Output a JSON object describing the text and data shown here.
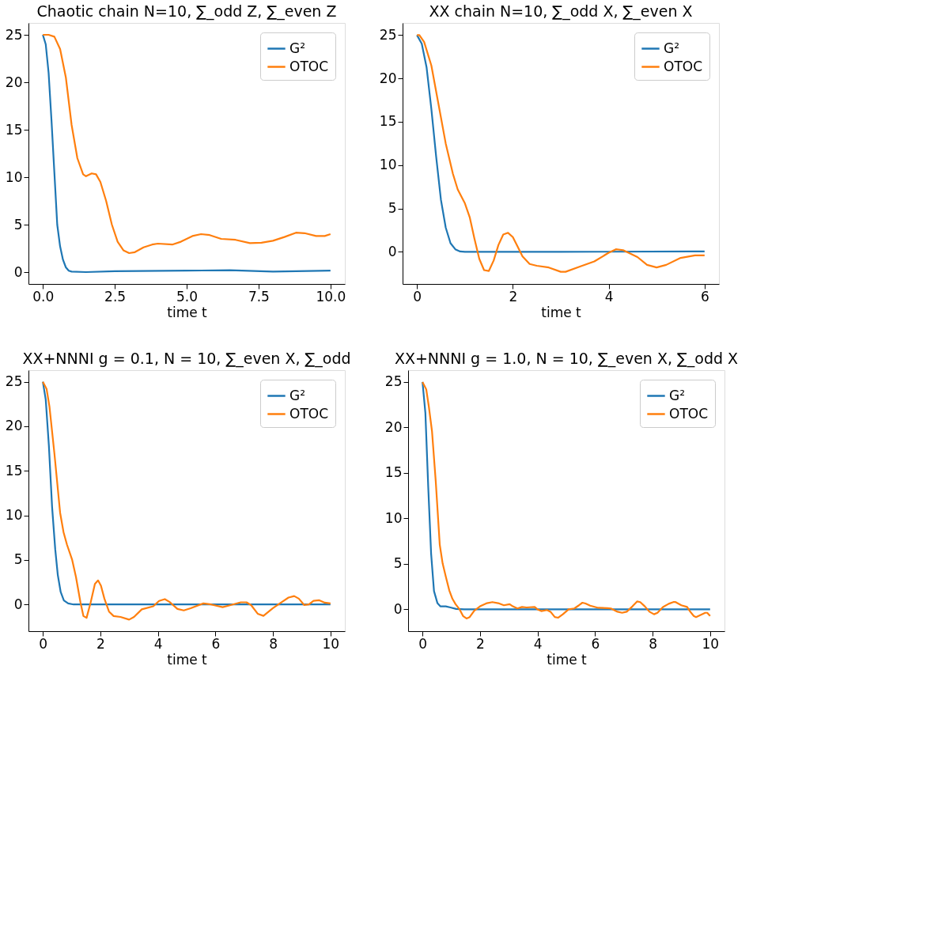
{
  "chart_data": [
    {
      "type": "line",
      "title": "Chaotic chain N=10, ∑_odd Z, ∑_even Z",
      "xlabel": "time t",
      "legend": "top right",
      "grid": false,
      "line_style": "solid",
      "xlim": [
        -0.5,
        10.5
      ],
      "ylim": [
        -1.25,
        26.25
      ],
      "xticks": [
        {
          "value": 0,
          "label": "0.0"
        },
        {
          "value": 2.5,
          "label": "2.5"
        },
        {
          "value": 5,
          "label": "5.0"
        },
        {
          "value": 7.5,
          "label": "7.5"
        },
        {
          "value": 10,
          "label": "10.0"
        }
      ],
      "yticks": [
        0,
        5,
        10,
        15,
        20,
        25
      ],
      "series": [
        {
          "name": "G²",
          "color": "#1f77b4",
          "x": [
            0,
            0.1,
            0.2,
            0.3,
            0.4,
            0.5,
            0.6,
            0.7,
            0.8,
            0.9,
            1.0,
            1.5,
            2.5,
            5,
            6.5,
            8,
            10
          ],
          "values": [
            25,
            24,
            21,
            16,
            10.5,
            5,
            2.7,
            1.3,
            0.5,
            0.15,
            0.05,
            0,
            0.1,
            0.15,
            0.2,
            0.05,
            0.15
          ]
        },
        {
          "name": "OTOC",
          "color": "#ff7f0e",
          "x": [
            0,
            0.2,
            0.4,
            0.6,
            0.8,
            1.0,
            1.2,
            1.4,
            1.5,
            1.7,
            1.85,
            2.0,
            2.2,
            2.4,
            2.6,
            2.8,
            3.0,
            3.2,
            3.5,
            3.8,
            4.0,
            4.5,
            4.8,
            5.2,
            5.5,
            5.8,
            6.2,
            6.7,
            7.2,
            7.6,
            8.0,
            8.4,
            8.8,
            9.1,
            9.5,
            9.8,
            10
          ],
          "values": [
            25,
            25,
            24.8,
            23.5,
            20.5,
            15.5,
            12,
            10.3,
            10.1,
            10.4,
            10.3,
            9.5,
            7.5,
            5,
            3.2,
            2.3,
            2.0,
            2.1,
            2.6,
            2.9,
            3.0,
            2.9,
            3.2,
            3.8,
            4.0,
            3.9,
            3.5,
            3.4,
            3.05,
            3.1,
            3.3,
            3.7,
            4.15,
            4.1,
            3.8,
            3.8,
            4.0
          ]
        }
      ]
    },
    {
      "type": "line",
      "title": "XX chain N=10, ∑_odd X, ∑_even X",
      "xlabel": "time t",
      "legend": "top right",
      "grid": false,
      "line_style": "solid",
      "xlim": [
        -0.3,
        6.3
      ],
      "ylim": [
        -3.7,
        26.4
      ],
      "xticks": [
        0,
        2,
        4,
        6
      ],
      "yticks": [
        0,
        5,
        10,
        15,
        20,
        25
      ],
      "series": [
        {
          "name": "G²",
          "color": "#1f77b4",
          "x": [
            0,
            0.1,
            0.2,
            0.3,
            0.4,
            0.5,
            0.6,
            0.7,
            0.8,
            0.9,
            1.0,
            3,
            5.8,
            6
          ],
          "values": [
            25,
            24,
            21.3,
            16.5,
            11,
            6,
            2.8,
            1.0,
            0.3,
            0.05,
            0,
            0,
            0.05,
            0.05
          ]
        },
        {
          "name": "OTOC",
          "color": "#ff7f0e",
          "x": [
            0,
            0.05,
            0.15,
            0.3,
            0.45,
            0.6,
            0.75,
            0.85,
            1.0,
            1.1,
            1.2,
            1.3,
            1.4,
            1.5,
            1.6,
            1.7,
            1.8,
            1.9,
            2.0,
            2.1,
            2.2,
            2.35,
            2.5,
            2.75,
            3.0,
            3.1,
            3.4,
            3.7,
            4.0,
            4.15,
            4.3,
            4.6,
            4.8,
            5.0,
            5.2,
            5.5,
            5.8,
            6.0
          ],
          "values": [
            25,
            25,
            24.2,
            21.5,
            17,
            12.5,
            9,
            7.2,
            5.6,
            4,
            1.5,
            -0.8,
            -2.1,
            -2.2,
            -1,
            0.8,
            2.0,
            2.2,
            1.7,
            0.6,
            -0.5,
            -1.4,
            -1.6,
            -1.8,
            -2.3,
            -2.3,
            -1.7,
            -1.1,
            -0.1,
            0.3,
            0.2,
            -0.6,
            -1.5,
            -1.8,
            -1.5,
            -0.7,
            -0.4,
            -0.4
          ]
        }
      ]
    },
    {
      "type": "line",
      "title": "XX+NNNI g = 0.1, N = 10, ∑_even X, ∑_odd",
      "xlabel": "time t",
      "legend": "top right",
      "grid": false,
      "line_style": "solid",
      "xlim": [
        -0.5,
        10.5
      ],
      "ylim": [
        -3.0,
        26.3
      ],
      "xticks": [
        0,
        2,
        4,
        6,
        8,
        10
      ],
      "yticks": [
        0,
        5,
        10,
        15,
        20,
        25
      ],
      "series": [
        {
          "name": "G²",
          "color": "#1f77b4",
          "x": [
            0,
            0.1,
            0.21,
            0.32,
            0.43,
            0.52,
            0.62,
            0.73,
            0.88,
            1.07,
            10
          ],
          "values": [
            25,
            23,
            17.8,
            11,
            6.2,
            3.3,
            1.4,
            0.46,
            0.12,
            0,
            0
          ]
        },
        {
          "name": "OTOC",
          "color": "#ff7f0e",
          "x": [
            0,
            0.13,
            0.23,
            0.4,
            0.6,
            0.72,
            0.84,
            1.02,
            1.15,
            1.31,
            1.41,
            1.52,
            1.66,
            1.81,
            1.92,
            2.02,
            2.14,
            2.3,
            2.46,
            2.7,
            3.0,
            3.17,
            3.44,
            3.84,
            4.04,
            4.24,
            4.4,
            4.68,
            4.9,
            5.14,
            5.58,
            5.85,
            6.25,
            6.53,
            6.88,
            7.08,
            7.24,
            7.47,
            7.67,
            7.99,
            8.26,
            8.54,
            8.74,
            8.9,
            9.09,
            9.25,
            9.41,
            9.6,
            9.8,
            10
          ],
          "values": [
            25,
            24.2,
            22.2,
            17,
            10.3,
            8.1,
            6.7,
            5,
            3.1,
            0.2,
            -1.3,
            -1.5,
            0.2,
            2.3,
            2.7,
            2.1,
            0.65,
            -0.8,
            -1.3,
            -1.4,
            -1.7,
            -1.4,
            -0.55,
            -0.2,
            0.4,
            0.6,
            0.3,
            -0.5,
            -0.67,
            -0.43,
            0.12,
            0,
            -0.3,
            -0.07,
            0.24,
            0.24,
            -0.07,
            -1.04,
            -1.28,
            -0.43,
            0.17,
            0.77,
            0.94,
            0.65,
            -0.07,
            0,
            0.4,
            0.48,
            0.2,
            0.12
          ]
        }
      ]
    },
    {
      "type": "line",
      "title": "XX+NNNI g = 1.0, N = 10, ∑_even X, ∑_odd X",
      "xlabel": "time t",
      "legend": "top right",
      "grid": false,
      "line_style": "solid",
      "xlim": [
        -0.5,
        10.5
      ],
      "ylim": [
        -2.4,
        26.3
      ],
      "xticks": [
        0,
        2,
        4,
        6,
        8,
        10
      ],
      "yticks": [
        0,
        5,
        10,
        15,
        20,
        25
      ],
      "series": [
        {
          "name": "G²",
          "color": "#1f77b4",
          "x": [
            0,
            0.1,
            0.2,
            0.3,
            0.4,
            0.52,
            0.62,
            0.81,
            0.97,
            1.17,
            1.45,
            10
          ],
          "values": [
            25,
            21.6,
            13.4,
            6.1,
            2.0,
            0.68,
            0.33,
            0.33,
            0.21,
            0.05,
            0,
            0
          ]
        },
        {
          "name": "OTOC",
          "color": "#ff7f0e",
          "x": [
            0,
            0.13,
            0.22,
            0.33,
            0.46,
            0.6,
            0.7,
            0.81,
            0.93,
            1.04,
            1.15,
            1.29,
            1.41,
            1.53,
            1.64,
            1.8,
            2.0,
            2.24,
            2.43,
            2.63,
            2.83,
            3.03,
            3.14,
            3.3,
            3.46,
            3.62,
            3.9,
            4.0,
            4.13,
            4.33,
            4.45,
            4.6,
            4.72,
            4.88,
            5.08,
            5.28,
            5.44,
            5.56,
            5.67,
            5.83,
            6.11,
            6.43,
            6.55,
            6.78,
            6.94,
            7.1,
            7.3,
            7.46,
            7.57,
            7.73,
            7.89,
            8.05,
            8.17,
            8.36,
            8.56,
            8.72,
            8.8,
            9.0,
            9.2,
            9.31,
            9.43,
            9.51,
            9.67,
            9.83,
            9.9,
            10
          ],
          "values": [
            25,
            24.2,
            22.3,
            19.6,
            14.1,
            7.1,
            5.05,
            3.6,
            2.1,
            1.16,
            0.57,
            0,
            -0.73,
            -1.0,
            -0.85,
            -0.14,
            0.33,
            0.68,
            0.8,
            0.68,
            0.45,
            0.57,
            0.33,
            0.1,
            0.26,
            0.21,
            0.26,
            0,
            -0.19,
            -0.07,
            -0.26,
            -0.85,
            -0.92,
            -0.54,
            0,
            0.1,
            0.45,
            0.73,
            0.64,
            0.4,
            0.17,
            0.14,
            0.1,
            -0.26,
            -0.38,
            -0.26,
            0.33,
            0.87,
            0.8,
            0.33,
            -0.26,
            -0.54,
            -0.38,
            0.26,
            0.61,
            0.8,
            0.8,
            0.45,
            0.26,
            -0.26,
            -0.73,
            -0.85,
            -0.61,
            -0.38,
            -0.38,
            -0.73
          ]
        }
      ]
    }
  ]
}
